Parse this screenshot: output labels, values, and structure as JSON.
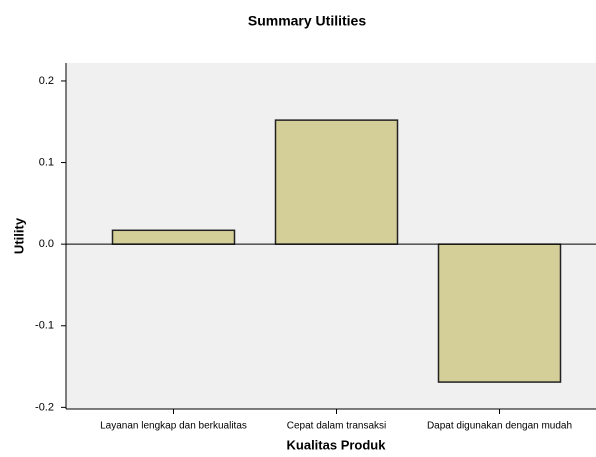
{
  "chart_data": {
    "type": "bar",
    "title": "Summary Utilities",
    "x_label": "Kualitas Produk",
    "y_label": "Utility",
    "categories": [
      "Layanan lengkap dan berkualitas",
      "Cepat dalam transaksi",
      "Dapat digunakan dengan mudah"
    ],
    "values": [
      0.017,
      0.152,
      -0.169
    ],
    "color": "#d4ce98",
    "ylim": [
      -0.202,
      0.222
    ],
    "yticks": [
      -0.2,
      -0.1,
      {
        "value": 0,
        "label": "0.0"
      },
      0.1,
      0.2
    ],
    "grid": false
  }
}
